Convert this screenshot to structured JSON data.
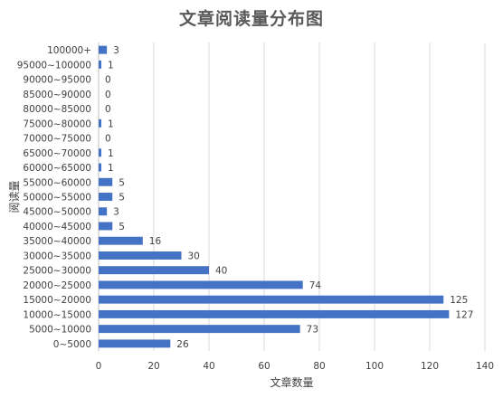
{
  "chart_data": {
    "type": "bar",
    "orientation": "horizontal",
    "title": "文章阅读量分布图",
    "xlabel": "文章数量",
    "ylabel": "阅读量",
    "xlim": [
      0,
      140
    ],
    "x_ticks": [
      0,
      20,
      40,
      60,
      80,
      100,
      120,
      140
    ],
    "grid": true,
    "legend": "none",
    "bar_color": "#4472C4",
    "categories": [
      "0~5000",
      "5000~10000",
      "10000~15000",
      "15000~20000",
      "20000~25000",
      "25000~30000",
      "30000~35000",
      "35000~40000",
      "40000~45000",
      "45000~50000",
      "50000~55000",
      "55000~60000",
      "60000~65000",
      "65000~70000",
      "70000~75000",
      "75000~80000",
      "80000~85000",
      "85000~90000",
      "90000~95000",
      "95000~100000",
      "100000+"
    ],
    "values": [
      26,
      73,
      127,
      125,
      74,
      40,
      30,
      16,
      5,
      3,
      5,
      5,
      1,
      1,
      0,
      1,
      0,
      0,
      0,
      1,
      3
    ]
  }
}
